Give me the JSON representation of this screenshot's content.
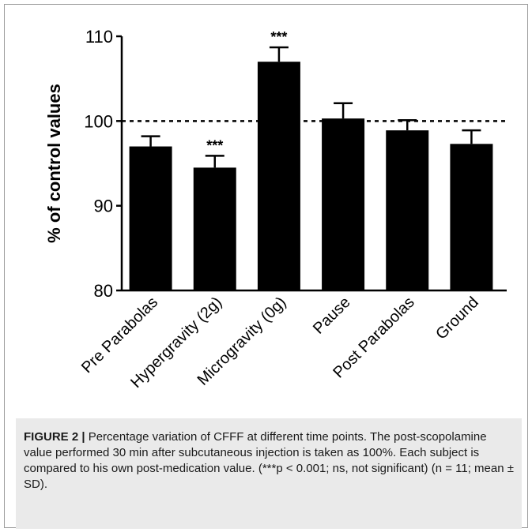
{
  "chart_data": {
    "type": "bar",
    "ylabel": "% of control values",
    "ylim": [
      80,
      110
    ],
    "yticks": [
      80,
      90,
      100,
      110
    ],
    "ytick_labels": [
      "80",
      "90",
      "100",
      "110"
    ],
    "reference_line": 100,
    "categories": [
      "Pre Parabolas",
      "Hypergravity (2g)",
      "Microgravity (0g)",
      "Pause",
      "Post Parabolas",
      "Ground"
    ],
    "values": [
      97.0,
      94.5,
      107.0,
      100.3,
      98.9,
      97.3
    ],
    "error": [
      1.2,
      1.4,
      1.7,
      1.8,
      1.2,
      1.6
    ],
    "significance": [
      "",
      "***",
      "***",
      "",
      "",
      ""
    ],
    "bar_color": "#000000",
    "grid": false
  },
  "caption": {
    "label": "FIGURE 2 |",
    "text": " Percentage variation of CFFF at different time points. The post-scopolamine value performed 30 min after subcutaneous injection is taken as 100%. Each subject is compared to his own post-medication value. (***p < 0.001; ns, not significant) (n = 11; mean ± SD)."
  }
}
